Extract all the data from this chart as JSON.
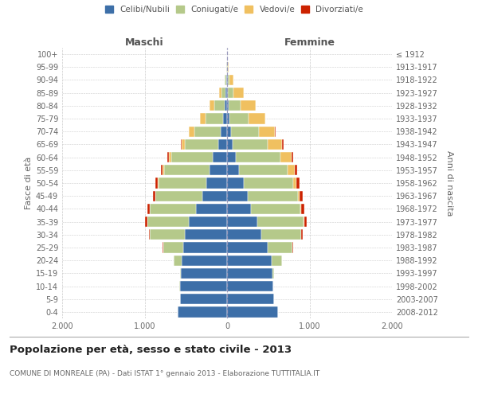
{
  "age_groups": [
    "0-4",
    "5-9",
    "10-14",
    "15-19",
    "20-24",
    "25-29",
    "30-34",
    "35-39",
    "40-44",
    "45-49",
    "50-54",
    "55-59",
    "60-64",
    "65-69",
    "70-74",
    "75-79",
    "80-84",
    "85-89",
    "90-94",
    "95-99",
    "100+"
  ],
  "birth_years": [
    "2008-2012",
    "2003-2007",
    "1998-2002",
    "1993-1997",
    "1988-1992",
    "1983-1987",
    "1978-1982",
    "1973-1977",
    "1968-1972",
    "1963-1967",
    "1958-1962",
    "1953-1957",
    "1948-1952",
    "1943-1947",
    "1938-1942",
    "1933-1937",
    "1928-1932",
    "1923-1927",
    "1918-1922",
    "1913-1917",
    "≤ 1912"
  ],
  "maschi": {
    "celibe": [
      600,
      570,
      570,
      560,
      555,
      535,
      510,
      460,
      380,
      295,
      255,
      210,
      175,
      110,
      80,
      45,
      25,
      15,
      7,
      3,
      2
    ],
    "coniugato": [
      1,
      2,
      5,
      10,
      90,
      240,
      430,
      510,
      560,
      570,
      580,
      555,
      500,
      400,
      320,
      220,
      130,
      55,
      18,
      3,
      1
    ],
    "vedovo": [
      0,
      0,
      0,
      0,
      0,
      0,
      0,
      1,
      2,
      3,
      5,
      15,
      35,
      45,
      60,
      65,
      55,
      25,
      8,
      2,
      0
    ],
    "divorziato": [
      0,
      0,
      0,
      0,
      2,
      5,
      10,
      20,
      25,
      30,
      25,
      20,
      15,
      5,
      0,
      0,
      0,
      0,
      0,
      0,
      0
    ]
  },
  "femmine": {
    "nubile": [
      620,
      570,
      560,
      555,
      540,
      490,
      420,
      370,
      290,
      250,
      200,
      145,
      110,
      65,
      45,
      25,
      15,
      10,
      5,
      2,
      1
    ],
    "coniugata": [
      2,
      3,
      5,
      18,
      125,
      300,
      480,
      560,
      600,
      610,
      605,
      590,
      540,
      430,
      340,
      235,
      145,
      65,
      22,
      3,
      1
    ],
    "vedova": [
      0,
      0,
      0,
      0,
      0,
      1,
      2,
      5,
      10,
      20,
      40,
      85,
      135,
      175,
      195,
      205,
      185,
      130,
      55,
      12,
      2
    ],
    "divorziata": [
      0,
      0,
      0,
      0,
      3,
      8,
      15,
      30,
      35,
      40,
      35,
      30,
      20,
      15,
      5,
      0,
      0,
      0,
      0,
      0,
      0
    ]
  },
  "colors": {
    "celibe": "#3d6fa8",
    "coniugato": "#b5c98a",
    "vedovo": "#f0c060",
    "divorziato": "#cc2200"
  },
  "title": "Popolazione per età, sesso e stato civile - 2013",
  "subtitle": "COMUNE DI MONREALE (PA) - Dati ISTAT 1° gennaio 2013 - Elaborazione TUTTITALIA.IT",
  "label_maschi": "Maschi",
  "label_femmine": "Femmine",
  "ylabel_left": "Fasce di età",
  "ylabel_right": "Anni di nascita",
  "xlim": 2000,
  "legend": [
    "Celibi/Nubili",
    "Coniugati/e",
    "Vedovi/e",
    "Divorziati/e"
  ],
  "bg_color": "#ffffff",
  "grid_color": "#cccccc"
}
